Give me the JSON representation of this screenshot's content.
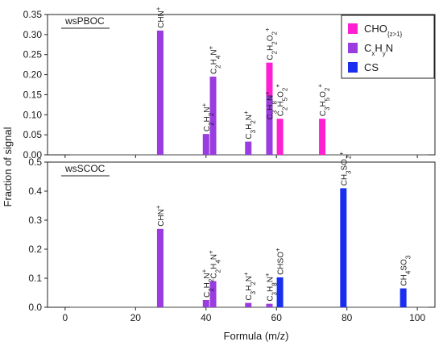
{
  "chart_data": {
    "type": "bar",
    "xlabel": "Formula (m/z)",
    "ylabel": "Fraction of signal",
    "xlim": [
      -5,
      105
    ],
    "xticks": [
      0,
      20,
      40,
      60,
      80,
      100
    ],
    "xtick_labels": [
      "0",
      "20",
      "40",
      "60",
      "80",
      "100"
    ],
    "legend": {
      "placement": "top-right",
      "items": [
        {
          "label": "CHO",
          "sub": "{z>1}",
          "color": "#ff1fd2"
        },
        {
          "label": "C",
          "sub": "x",
          "label2": "H",
          "sub2": "y",
          "label3": "N",
          "color": "#9a3ce0"
        },
        {
          "label": "CS",
          "color": "#1a2ef0"
        }
      ]
    },
    "panels": [
      {
        "name": "wsPBOC",
        "ylim": [
          0,
          0.35
        ],
        "yticks": [
          0.0,
          0.05,
          0.1,
          0.15,
          0.2,
          0.25,
          0.3,
          0.35
        ],
        "ytick_labels": [
          "0.00",
          "0.05",
          "0.10",
          "0.15",
          "0.20",
          "0.25",
          "0.30",
          "0.35"
        ],
        "bars": [
          {
            "x": 27,
            "value": 0.31,
            "group": "CxHyN",
            "label": [
              {
                "t": "CHN"
              },
              {
                "t": "+",
                "s": "sup"
              }
            ]
          },
          {
            "x": 40,
            "value": 0.052,
            "group": "CxHyN",
            "label": [
              {
                "t": "C"
              },
              {
                "t": "2",
                "s": "sub"
              },
              {
                "t": "H"
              },
              {
                "t": "2",
                "s": "sub"
              },
              {
                "t": "N"
              },
              {
                "t": "+",
                "s": "sup"
              }
            ]
          },
          {
            "x": 42,
            "value": 0.195,
            "group": "CxHyN",
            "label": [
              {
                "t": "C"
              },
              {
                "t": "2",
                "s": "sub"
              },
              {
                "t": "H"
              },
              {
                "t": "4",
                "s": "sub"
              },
              {
                "t": "N"
              },
              {
                "t": "+",
                "s": "sup"
              }
            ]
          },
          {
            "x": 52,
            "value": 0.033,
            "group": "CxHyN",
            "label": [
              {
                "t": "C"
              },
              {
                "t": "3",
                "s": "sub"
              },
              {
                "t": "H"
              },
              {
                "t": "2",
                "s": "sub"
              },
              {
                "t": "N"
              },
              {
                "t": "+",
                "s": "sup"
              }
            ]
          },
          {
            "x": 58,
            "value": 0.23,
            "group": "CHO",
            "label": [
              {
                "t": "C"
              },
              {
                "t": "2",
                "s": "sub"
              },
              {
                "t": "H"
              },
              {
                "t": "2",
                "s": "sub"
              },
              {
                "t": "O"
              },
              {
                "t": "2",
                "s": "sub"
              },
              {
                "t": "+",
                "s": "sup"
              }
            ],
            "label_above": true
          },
          {
            "x": 58,
            "value": 0.148,
            "group": "CxHyN",
            "label": [
              {
                "t": "C"
              },
              {
                "t": "3",
                "s": "sub"
              },
              {
                "t": "H"
              },
              {
                "t": "8",
                "s": "sub"
              },
              {
                "t": "N"
              },
              {
                "t": "+",
                "s": "sup"
              }
            ],
            "label_inside": true
          },
          {
            "x": 61,
            "value": 0.09,
            "group": "CHO",
            "label": [
              {
                "t": "C"
              },
              {
                "t": "2",
                "s": "sub"
              },
              {
                "t": "H"
              },
              {
                "t": "5",
                "s": "sub"
              },
              {
                "t": "O"
              },
              {
                "t": "2",
                "s": "sub"
              },
              {
                "t": "+",
                "s": "sup"
              }
            ]
          },
          {
            "x": 73,
            "value": 0.09,
            "group": "CHO",
            "label": [
              {
                "t": "C"
              },
              {
                "t": "3",
                "s": "sub"
              },
              {
                "t": "H"
              },
              {
                "t": "5",
                "s": "sub"
              },
              {
                "t": "O"
              },
              {
                "t": "2",
                "s": "sub"
              },
              {
                "t": "+",
                "s": "sup"
              }
            ]
          }
        ]
      },
      {
        "name": "wsSCOC",
        "ylim": [
          0,
          0.5
        ],
        "yticks": [
          0.0,
          0.1,
          0.2,
          0.3,
          0.4,
          0.5
        ],
        "ytick_labels": [
          "0.0",
          "0.1",
          "0.2",
          "0.3",
          "0.4",
          "0.5"
        ],
        "bars": [
          {
            "x": 27,
            "value": 0.27,
            "group": "CxHyN",
            "label": [
              {
                "t": "CHN"
              },
              {
                "t": "+",
                "s": "sup"
              }
            ]
          },
          {
            "x": 40,
            "value": 0.025,
            "group": "CxHyN",
            "label": [
              {
                "t": "C"
              },
              {
                "t": "2",
                "s": "sub"
              },
              {
                "t": "H"
              },
              {
                "t": "2",
                "s": "sub"
              },
              {
                "t": "N"
              },
              {
                "t": "+",
                "s": "sup"
              }
            ]
          },
          {
            "x": 42,
            "value": 0.09,
            "group": "CxHyN",
            "label": [
              {
                "t": "C"
              },
              {
                "t": "2",
                "s": "sub"
              },
              {
                "t": "H"
              },
              {
                "t": "4",
                "s": "sub"
              },
              {
                "t": "N"
              },
              {
                "t": "+",
                "s": "sup"
              }
            ]
          },
          {
            "x": 52,
            "value": 0.015,
            "group": "CxHyN",
            "label": [
              {
                "t": "C"
              },
              {
                "t": "3",
                "s": "sub"
              },
              {
                "t": "H"
              },
              {
                "t": "2",
                "s": "sub"
              },
              {
                "t": "N"
              },
              {
                "t": "+",
                "s": "sup"
              }
            ]
          },
          {
            "x": 58,
            "value": 0.012,
            "group": "CxHyN",
            "label": [
              {
                "t": "C"
              },
              {
                "t": "3",
                "s": "sub"
              },
              {
                "t": "H"
              },
              {
                "t": "8",
                "s": "sub"
              },
              {
                "t": "N"
              },
              {
                "t": "+",
                "s": "sup"
              }
            ]
          },
          {
            "x": 61,
            "value": 0.103,
            "group": "CS",
            "label": [
              {
                "t": "CHSO"
              },
              {
                "t": "+",
                "s": "sup"
              }
            ]
          },
          {
            "x": 79,
            "value": 0.41,
            "group": "CS",
            "label": [
              {
                "t": "CH"
              },
              {
                "t": "3",
                "s": "sub"
              },
              {
                "t": "SO"
              },
              {
                "t": "2",
                "s": "sub"
              },
              {
                "t": "+",
                "s": "sup"
              }
            ]
          },
          {
            "x": 96,
            "value": 0.065,
            "group": "CS",
            "label": [
              {
                "t": "CH"
              },
              {
                "t": "4",
                "s": "sub"
              },
              {
                "t": "SO"
              },
              {
                "t": "3",
                "s": "sub"
              }
            ]
          }
        ]
      }
    ]
  }
}
